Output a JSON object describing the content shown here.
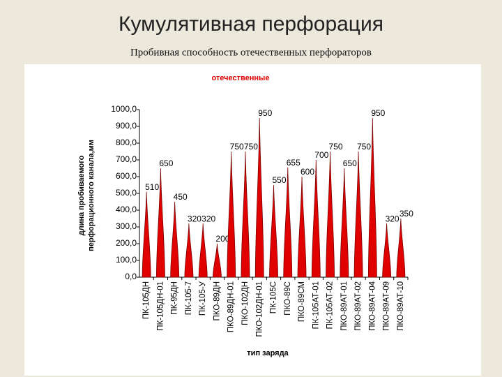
{
  "header": {
    "title": "Кумулятивная перфорация",
    "subtitle": "Пробивная способность отечественных перфораторов"
  },
  "chart_data": {
    "type": "bar",
    "title": "отечественные",
    "y_label": "длина пробиваемого перфорационного канала,мм",
    "x_label": "тип заряда",
    "categories": [
      "ПК-105ДН",
      "ПК-105ДН-01",
      "ПК-95ДН",
      "ПК-105-7",
      "ПК-105-У",
      "ПКО-89ДН",
      "ПКО-89ДН-01",
      "ПКО-102ДН",
      "ПКО-102ДН-01",
      "ПК-105С",
      "ПКО-89С",
      "ПКО-89СМ",
      "ПК-105АТ-01",
      "ПК-105АТ-02",
      "ПКО-89АТ-01",
      "ПКО-89АТ-02",
      "ПКО-89АТ-04",
      "ПКО-89АТ-09",
      "ПКО-89АТ-10"
    ],
    "values": [
      510,
      650,
      450,
      320,
      320,
      200,
      750,
      750,
      950,
      550,
      655,
      600,
      700,
      750,
      650,
      750,
      950,
      320,
      350
    ],
    "color": "#e00000",
    "ylim": [
      0,
      1000
    ],
    "yticks": [
      {
        "value": 0,
        "label": "0,0"
      },
      {
        "value": 100,
        "label": "100,0"
      },
      {
        "value": 200,
        "label": "200,0"
      },
      {
        "value": 300,
        "label": "300,0"
      },
      {
        "value": 400,
        "label": "400,0"
      },
      {
        "value": 500,
        "label": "500,0"
      },
      {
        "value": 600,
        "label": "600,0"
      },
      {
        "value": 700,
        "label": "700,0"
      },
      {
        "value": 800,
        "label": "800,0"
      },
      {
        "value": 900,
        "label": "900,0"
      },
      {
        "value": 1000,
        "label": "1000,0"
      }
    ]
  }
}
